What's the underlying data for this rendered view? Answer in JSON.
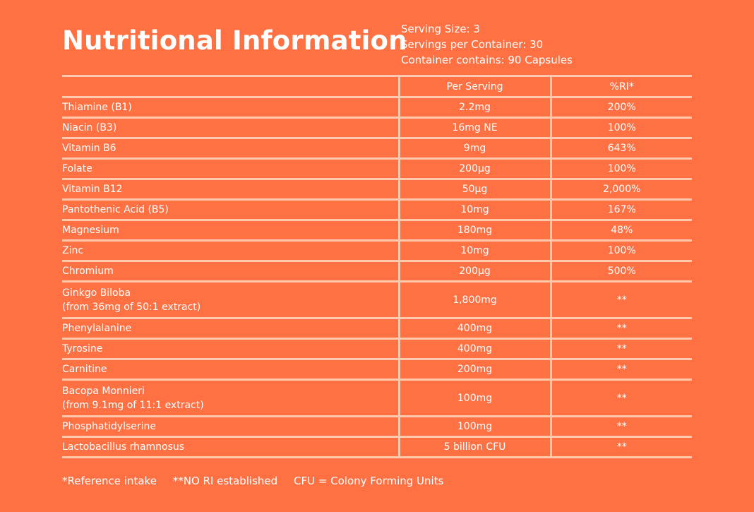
{
  "title": "Nutritional Information",
  "serving_info": {
    "serving_size": "Serving Size: 3",
    "servings_per_container": "Servings per Container: 30",
    "container_contains": "Container contains: 90 Capsules"
  },
  "table": {
    "headers": {
      "name": "",
      "per_serving": "Per Serving",
      "ri": "%RI*"
    },
    "rows": [
      {
        "name": "Thiamine (B1)",
        "sub": "",
        "per_serving": "2.2mg",
        "ri": "200%"
      },
      {
        "name": "Niacin (B3)",
        "sub": "",
        "per_serving": "16mg NE",
        "ri": "100%"
      },
      {
        "name": "Vitamin B6",
        "sub": "",
        "per_serving": "9mg",
        "ri": "643%"
      },
      {
        "name": "Folate",
        "sub": "",
        "per_serving": "200µg",
        "ri": "100%"
      },
      {
        "name": "Vitamin B12",
        "sub": "",
        "per_serving": "50µg",
        "ri": "2,000%"
      },
      {
        "name": "Pantothenic Acid (B5)",
        "sub": "",
        "per_serving": "10mg",
        "ri": "167%"
      },
      {
        "name": "Magnesium",
        "sub": "",
        "per_serving": "180mg",
        "ri": "48%"
      },
      {
        "name": "Zinc",
        "sub": "",
        "per_serving": "10mg",
        "ri": "100%"
      },
      {
        "name": "Chromium",
        "sub": "",
        "per_serving": "200µg",
        "ri": "500%"
      },
      {
        "name": "Ginkgo Biloba",
        "sub": "(from 36mg of 50:1 extract)",
        "per_serving": "1,800mg",
        "ri": "**"
      },
      {
        "name": "Phenylalanine",
        "sub": "",
        "per_serving": "400mg",
        "ri": "**"
      },
      {
        "name": "Tyrosine",
        "sub": "",
        "per_serving": "400mg",
        "ri": "**"
      },
      {
        "name": "Carnitine",
        "sub": "",
        "per_serving": "200mg",
        "ri": "**"
      },
      {
        "name": "Bacopa Monnieri",
        "sub": "(from 9.1mg of 11:1 extract)",
        "per_serving": "100mg",
        "ri": "**"
      },
      {
        "name": "Phosphatidylserine",
        "sub": "",
        "per_serving": "100mg",
        "ri": "**"
      },
      {
        "name": "Lactobacillus rhamnosus",
        "sub": "",
        "per_serving": "5 billion CFU",
        "ri": "**"
      }
    ]
  },
  "footer": {
    "reference": "*Reference intake",
    "no_ri": "**NO RI established",
    "cfu": "CFU = Colony Forming Units"
  },
  "colors": {
    "background": "#FF7043",
    "text": "#FFFFFF",
    "rule": "#FFC9B0"
  }
}
